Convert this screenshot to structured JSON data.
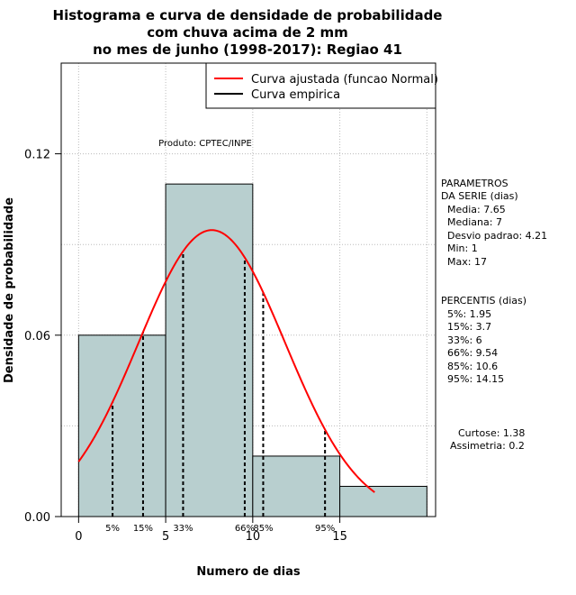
{
  "chart_data": {
    "type": "bar",
    "title_lines": [
      "Histograma e curva de densidade de probabilidade",
      "com chuva acima de 2 mm",
      "no mes de junho (1998-2017): Regiao 41"
    ],
    "xlabel": "Numero de dias",
    "ylabel": "Densidade de probabilidade",
    "xlim": [
      -1,
      20.5
    ],
    "ylim": [
      0,
      0.15
    ],
    "x_ticks": [
      "0",
      "5",
      "10",
      "15"
    ],
    "y_ticks": [
      "0.00",
      "0.06",
      "0.12"
    ],
    "bins": [
      {
        "x0": 0,
        "x1": 5,
        "density": 0.06
      },
      {
        "x0": 5,
        "x1": 10,
        "density": 0.11
      },
      {
        "x0": 10,
        "x1": 15,
        "density": 0.02
      },
      {
        "x0": 15,
        "x1": 20,
        "density": 0.01
      }
    ],
    "fitted_curve": {
      "mean": 7.65,
      "sd": 4.21,
      "x_range": [
        0,
        17
      ]
    },
    "percentiles": [
      {
        "label": "5%",
        "x": 1.95
      },
      {
        "label": "15%",
        "x": 3.7
      },
      {
        "label": "33%",
        "x": 6
      },
      {
        "label": "66%",
        "x": 9.54
      },
      {
        "label": "85%",
        "x": 10.6
      },
      {
        "label": "95%",
        "x": 14.15
      }
    ],
    "legend": {
      "position": "top-right",
      "items": [
        {
          "label": "Curva ajustada (funcao Normal)",
          "color": "#ff0000"
        },
        {
          "label": "Curva empirica",
          "color": "#000000"
        }
      ]
    },
    "product_label": "Produto: CPTEC/INPE",
    "grid": true,
    "bar_color": "#b8cfcf",
    "curve_color": "#ff0000"
  },
  "side_panel": {
    "params_title": [
      "PARAMETROS",
      "DA SERIE (dias)"
    ],
    "params": [
      "Media: 7.65",
      "Mediana: 7",
      "Desvio padrao: 4.21",
      "Min: 1",
      "Max: 17"
    ],
    "percentis_title": "PERCENTIS (dias)",
    "percentis": [
      "5%: 1.95",
      "15%: 3.7",
      "33%: 6",
      "66%: 9.54",
      "85%: 10.6",
      "95%: 14.15"
    ],
    "extra": [
      "Curtose: 1.38",
      "Assimetria: 0.2"
    ]
  }
}
